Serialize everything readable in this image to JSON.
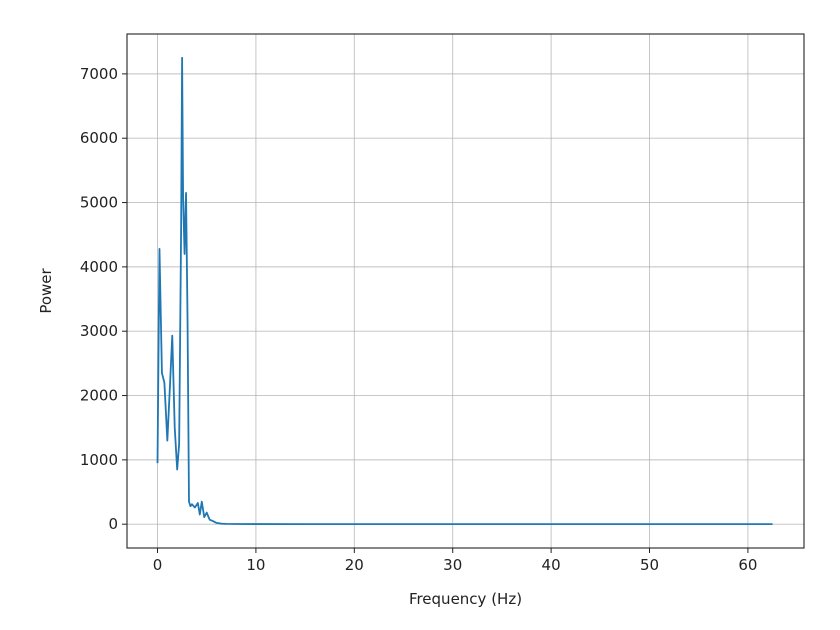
{
  "chart_data": {
    "type": "line",
    "title": "",
    "xlabel": "Frequency (Hz)",
    "ylabel": "Power",
    "xlim": [
      -3.1,
      65.7
    ],
    "ylim": [
      -370,
      7620
    ],
    "grid": true,
    "xticks": [
      0,
      10,
      20,
      30,
      40,
      50,
      60
    ],
    "yticks": [
      0,
      1000,
      2000,
      3000,
      4000,
      5000,
      6000,
      7000
    ],
    "series": [
      {
        "color": "#1f77b4",
        "x": [
          0.0,
          0.2,
          0.45,
          0.7,
          1.0,
          1.25,
          1.5,
          1.75,
          2.0,
          2.2,
          2.4,
          2.5,
          2.6,
          2.75,
          2.9,
          3.05,
          3.2,
          3.35,
          3.5,
          3.8,
          4.1,
          4.3,
          4.5,
          4.75,
          5.0,
          5.3,
          5.6,
          6.0,
          6.5,
          7.0,
          8.0,
          10.0,
          15.0,
          20.0,
          30.0,
          40.0,
          50.0,
          60.0,
          62.5
        ],
        "y": [
          950,
          4280,
          2350,
          2200,
          1300,
          2100,
          2930,
          1500,
          850,
          1250,
          4600,
          7250,
          5100,
          4200,
          5150,
          3200,
          350,
          280,
          310,
          260,
          330,
          150,
          350,
          110,
          180,
          70,
          50,
          20,
          8,
          5,
          3,
          2,
          1,
          1,
          1,
          1,
          1,
          1,
          1
        ]
      }
    ]
  }
}
